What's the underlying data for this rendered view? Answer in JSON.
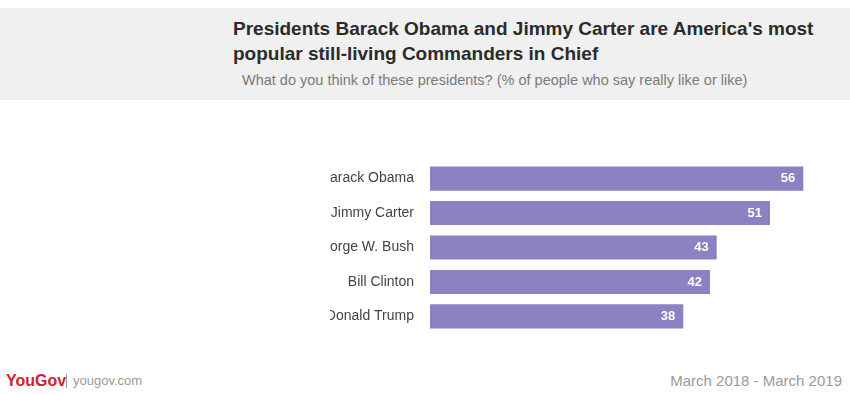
{
  "chart_data": {
    "type": "bar",
    "orientation": "horizontal",
    "title": "Presidents Barack Obama and Jimmy Carter are America's most popular still-living Commanders in Chief",
    "subtitle": "What do you think of these presidents? (% of people who say really like or like)",
    "categories": [
      "Barack Obama",
      "Jimmy Carter",
      "George W. Bush",
      "Bill Clinton",
      "Donald Trump"
    ],
    "values": [
      56,
      51,
      43,
      42,
      38
    ],
    "color": "#8d80c3",
    "xlim": [
      0,
      60
    ],
    "grid": false,
    "tick_labels": "y",
    "data_labels": true,
    "annotations": [
      "YouGov",
      "yougov.com",
      "March 2018 - March 2019"
    ]
  }
}
